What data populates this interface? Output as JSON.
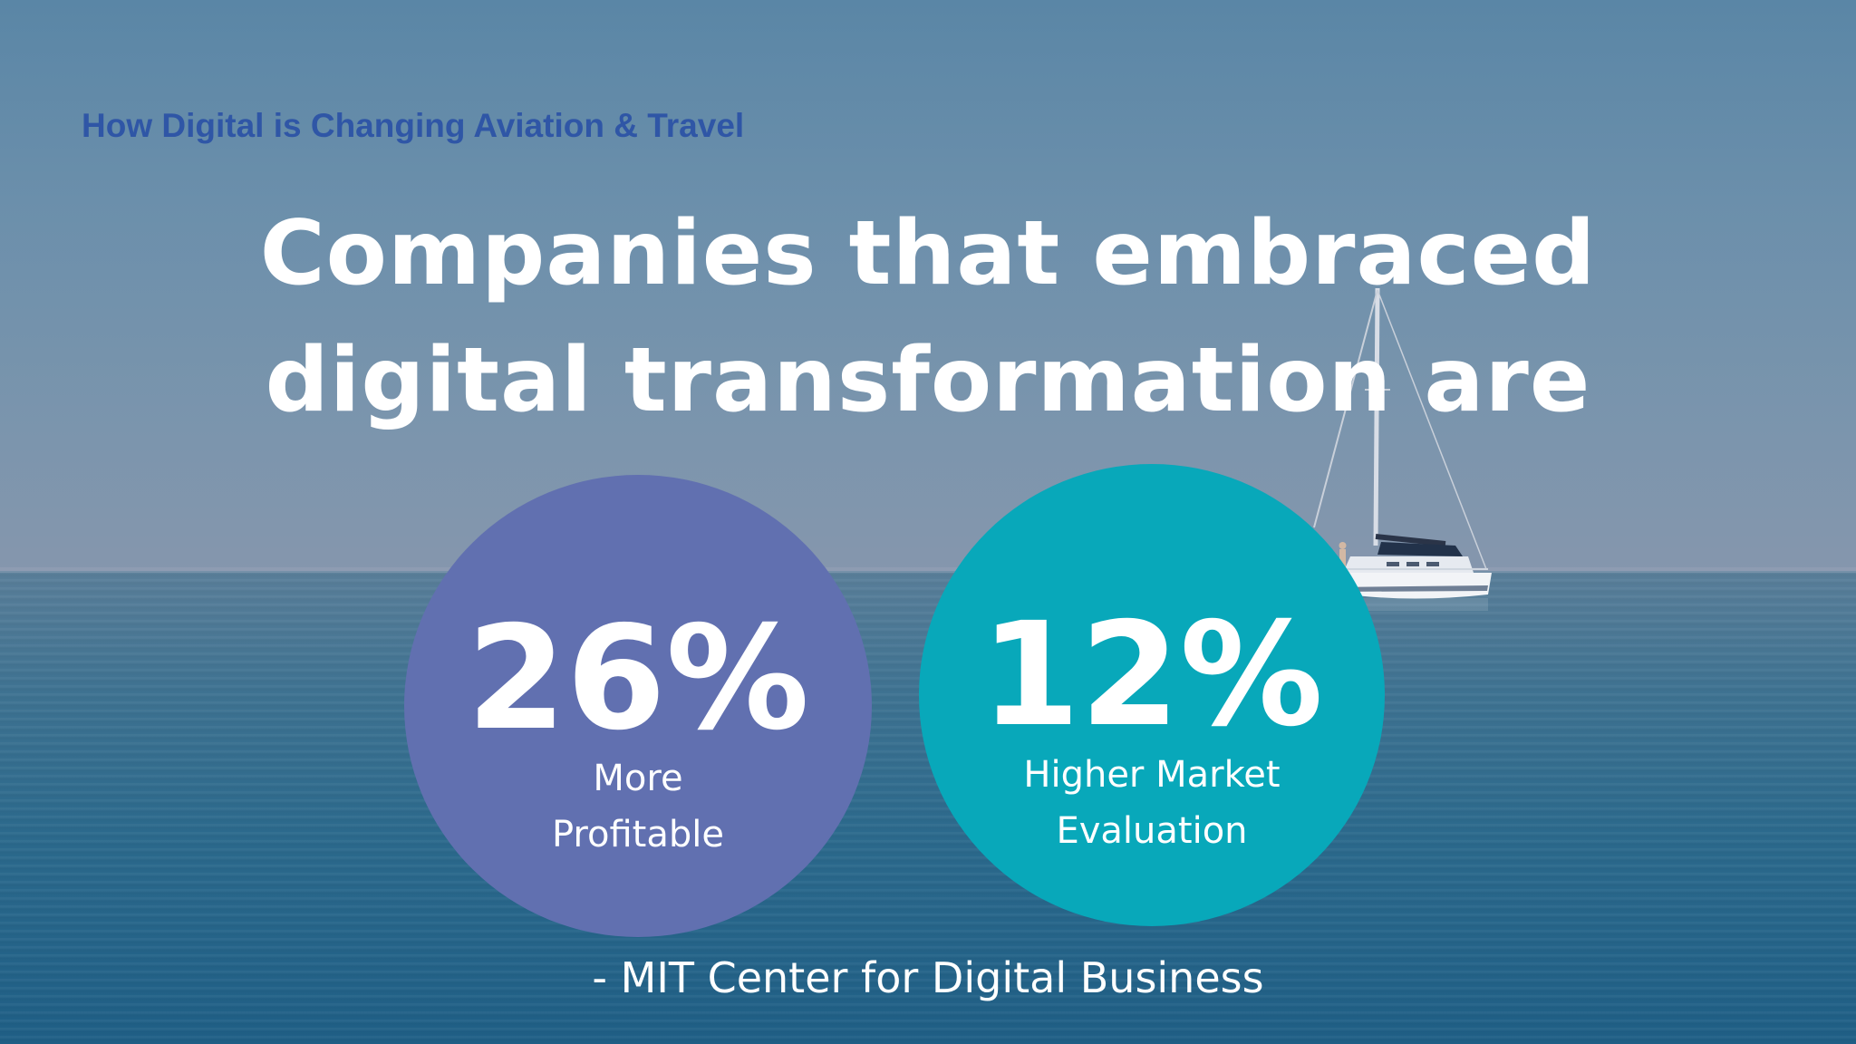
{
  "slide": {
    "subtitle": "How Digital is Changing Aviation & Travel",
    "headline": {
      "line1": "Companies that embraced",
      "line2": "digital transformation are"
    },
    "stats": [
      {
        "value": "26%",
        "label_line1": "More",
        "label_line2": "Profitable",
        "color": "#6170b0"
      },
      {
        "value": "12%",
        "label_line1": "Higher Market",
        "label_line2": "Evaluation",
        "color": "#08a8ba"
      }
    ],
    "attribution": "- MIT Center for Digital Business",
    "background": {
      "sky_color": "#6b8fab",
      "sea_color": "#2c6a8d",
      "subject": "sailboat-icon"
    }
  }
}
